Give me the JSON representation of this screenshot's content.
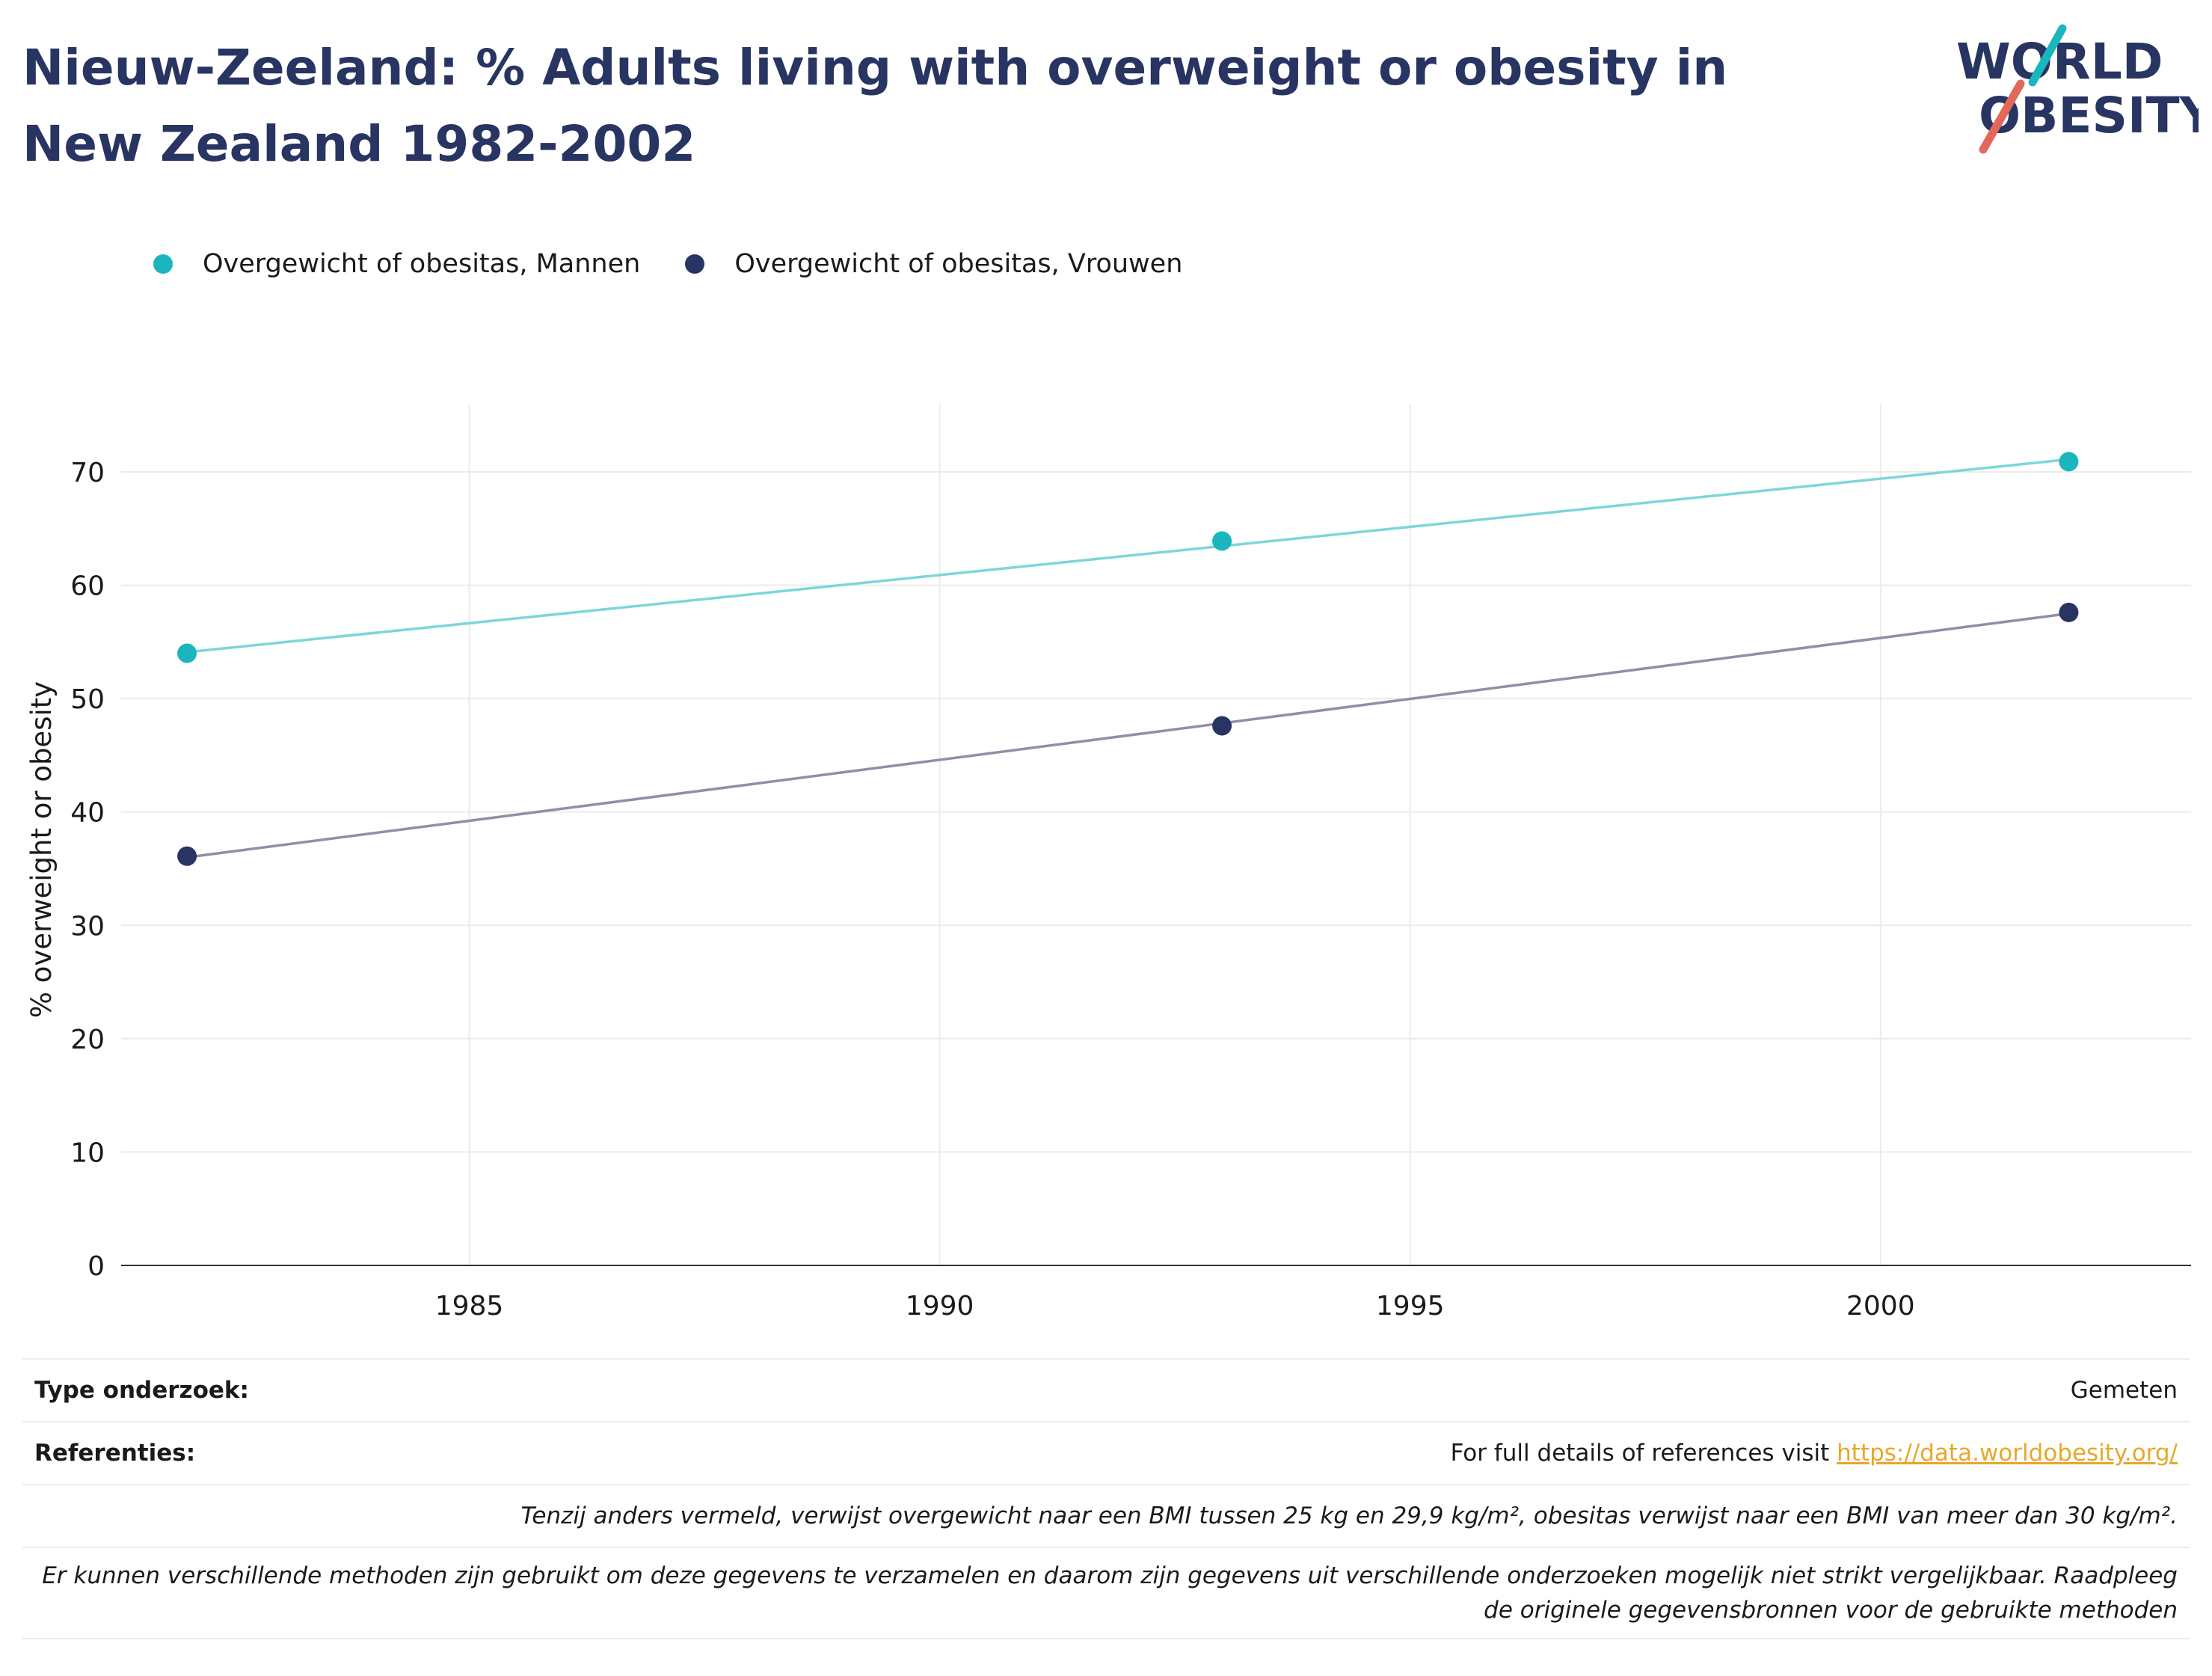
{
  "title": "Nieuw-Zeeland: % Adults living with overweight or obesity in New Zealand 1982-2002",
  "logo": {
    "line1": "WORLD",
    "line2": "OBESITY",
    "icon": "world-obesity-logo"
  },
  "colors": {
    "title": "#283461",
    "men": "#1bb6bd",
    "women": "#283461",
    "men_line": "#7dd6d9",
    "women_line": "#8e90a6",
    "grid": "#ebebeb",
    "link": "#e8a72b"
  },
  "legend": [
    {
      "label": "Overgewicht of obesitas, Mannen",
      "color": "#1bb6bd"
    },
    {
      "label": "Overgewicht of obesitas, Vrouwen",
      "color": "#283461"
    }
  ],
  "chart_data": {
    "type": "line",
    "ylabel": "% overweight or obesity",
    "xlabel": "",
    "xlim": [
      1981.3,
      2003.3
    ],
    "ylim": [
      0,
      76
    ],
    "xticks": [
      1985,
      1990,
      1995,
      2000
    ],
    "yticks": [
      0,
      10,
      20,
      30,
      40,
      50,
      60,
      70
    ],
    "grid": true,
    "legend_position": "top-left",
    "series": [
      {
        "name": "Overgewicht of obesitas, Mannen",
        "x": [
          1982,
          1993,
          2002
        ],
        "y": [
          54.0,
          63.9,
          70.9
        ],
        "trend": [
          [
            1982,
            54.1
          ],
          [
            2002,
            71.1
          ]
        ]
      },
      {
        "name": "Overgewicht of obesitas, Vrouwen",
        "x": [
          1982,
          1993,
          2002
        ],
        "y": [
          36.1,
          47.6,
          57.6
        ],
        "trend": [
          [
            1982,
            36.0
          ],
          [
            2002,
            57.5
          ]
        ]
      }
    ]
  },
  "footer": {
    "study_type_label": "Type onderzoek:",
    "study_type_value": "Gemeten",
    "references_label": "Referenties:",
    "references_text": "For full details of references visit ",
    "references_link": "https://data.worldobesity.org/",
    "note1": "Tenzij anders vermeld, verwijst overgewicht naar een BMI tussen 25 kg en 29,9 kg/m², obesitas verwijst naar een BMI van meer dan 30 kg/m².",
    "note2": "Er kunnen verschillende methoden zijn gebruikt om deze gegevens te verzamelen en daarom zijn gegevens uit verschillende onderzoeken mogelijk niet strikt vergelijkbaar. Raadpleeg de originele gegevensbronnen voor de gebruikte methoden"
  }
}
